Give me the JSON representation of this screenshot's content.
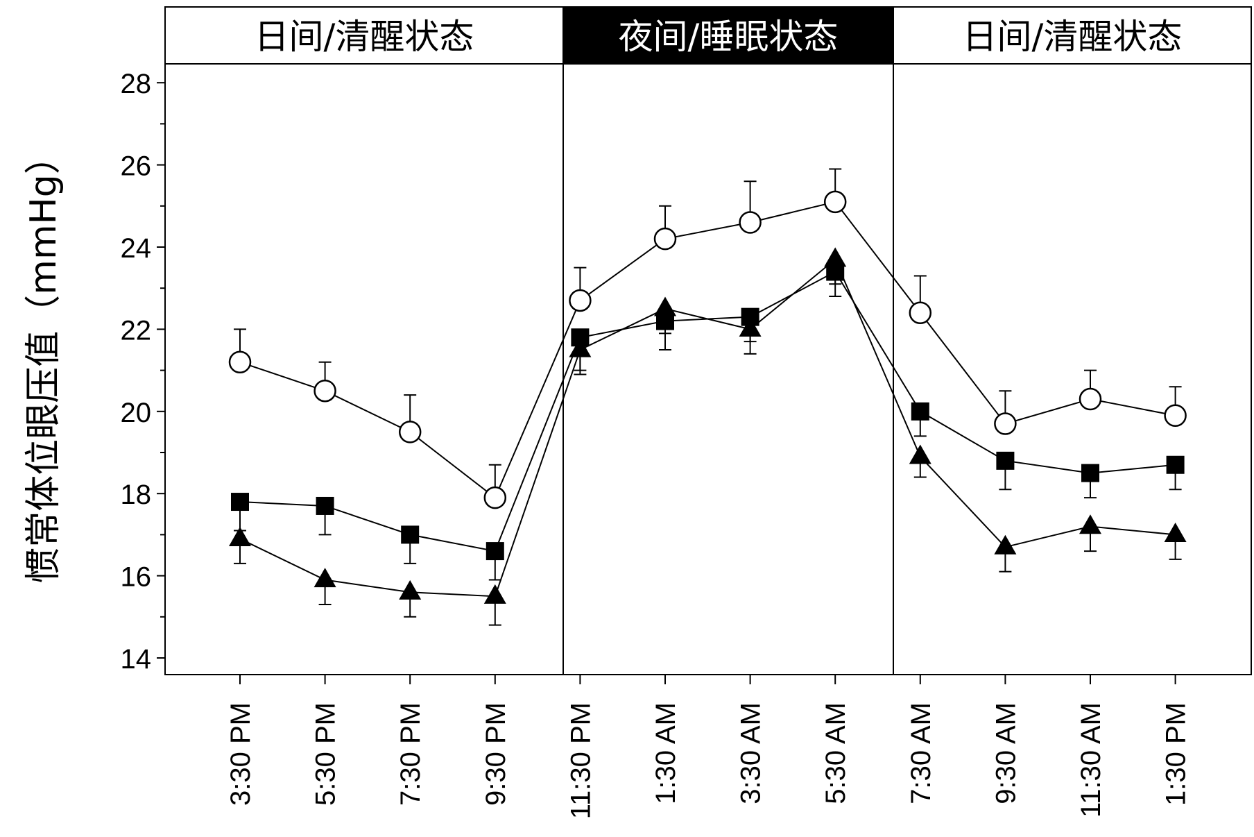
{
  "chart_data": {
    "type": "line",
    "title": "",
    "xlabel": "",
    "ylabel": "惯常体位眼压值（mmHg）",
    "ylim": [
      14,
      28
    ],
    "yticks": [
      14,
      16,
      18,
      20,
      22,
      24,
      26,
      28
    ],
    "ytick_labels": [
      "14",
      "16",
      "18",
      "20",
      "22",
      "24",
      "26",
      "28"
    ],
    "categories": [
      "3:30 PM",
      "5:30 PM",
      "7:30 PM",
      "9:30 PM",
      "11:30 PM",
      "1:30 AM",
      "3:30 AM",
      "5:30 AM",
      "7:30 AM",
      "9:30 AM",
      "11:30 AM",
      "1:30 PM"
    ],
    "bands": [
      {
        "label": "日间/清醒状态",
        "start": 0,
        "end": 3,
        "fill": "#ffffff",
        "text_color": "#000000"
      },
      {
        "label": "夜间/睡眠状态",
        "start": 4,
        "end": 7,
        "fill": "#000000",
        "text_color": "#ffffff"
      },
      {
        "label": "日间/清醒状态",
        "start": 8,
        "end": 11,
        "fill": "#ffffff",
        "text_color": "#000000"
      }
    ],
    "grid": false,
    "series": [
      {
        "marker": "circle-open",
        "values": [
          21.2,
          20.5,
          19.5,
          17.9,
          22.7,
          24.2,
          24.6,
          25.1,
          22.4,
          19.7,
          20.3,
          19.9
        ],
        "errors": [
          0.8,
          0.7,
          0.9,
          0.8,
          0.8,
          0.8,
          1.0,
          0.8,
          0.9,
          0.8,
          0.7,
          0.7
        ],
        "error_dir": "up"
      },
      {
        "marker": "square-filled",
        "values": [
          17.8,
          17.7,
          17.0,
          16.6,
          21.8,
          22.2,
          22.3,
          23.4,
          20.0,
          18.8,
          18.5,
          18.7
        ],
        "errors": [
          0.7,
          0.7,
          0.7,
          0.7,
          0.8,
          0.7,
          0.6,
          0.6,
          0.6,
          0.7,
          0.6,
          0.6
        ],
        "error_dir": "down"
      },
      {
        "marker": "triangle-filled",
        "values": [
          16.9,
          15.9,
          15.6,
          15.5,
          21.5,
          22.5,
          22.0,
          23.7,
          18.9,
          16.7,
          17.2,
          17.0
        ],
        "errors": [
          0.6,
          0.6,
          0.6,
          0.7,
          0.6,
          0.6,
          0.6,
          0.6,
          0.5,
          0.6,
          0.6,
          0.6
        ],
        "error_dir": "down"
      }
    ]
  }
}
